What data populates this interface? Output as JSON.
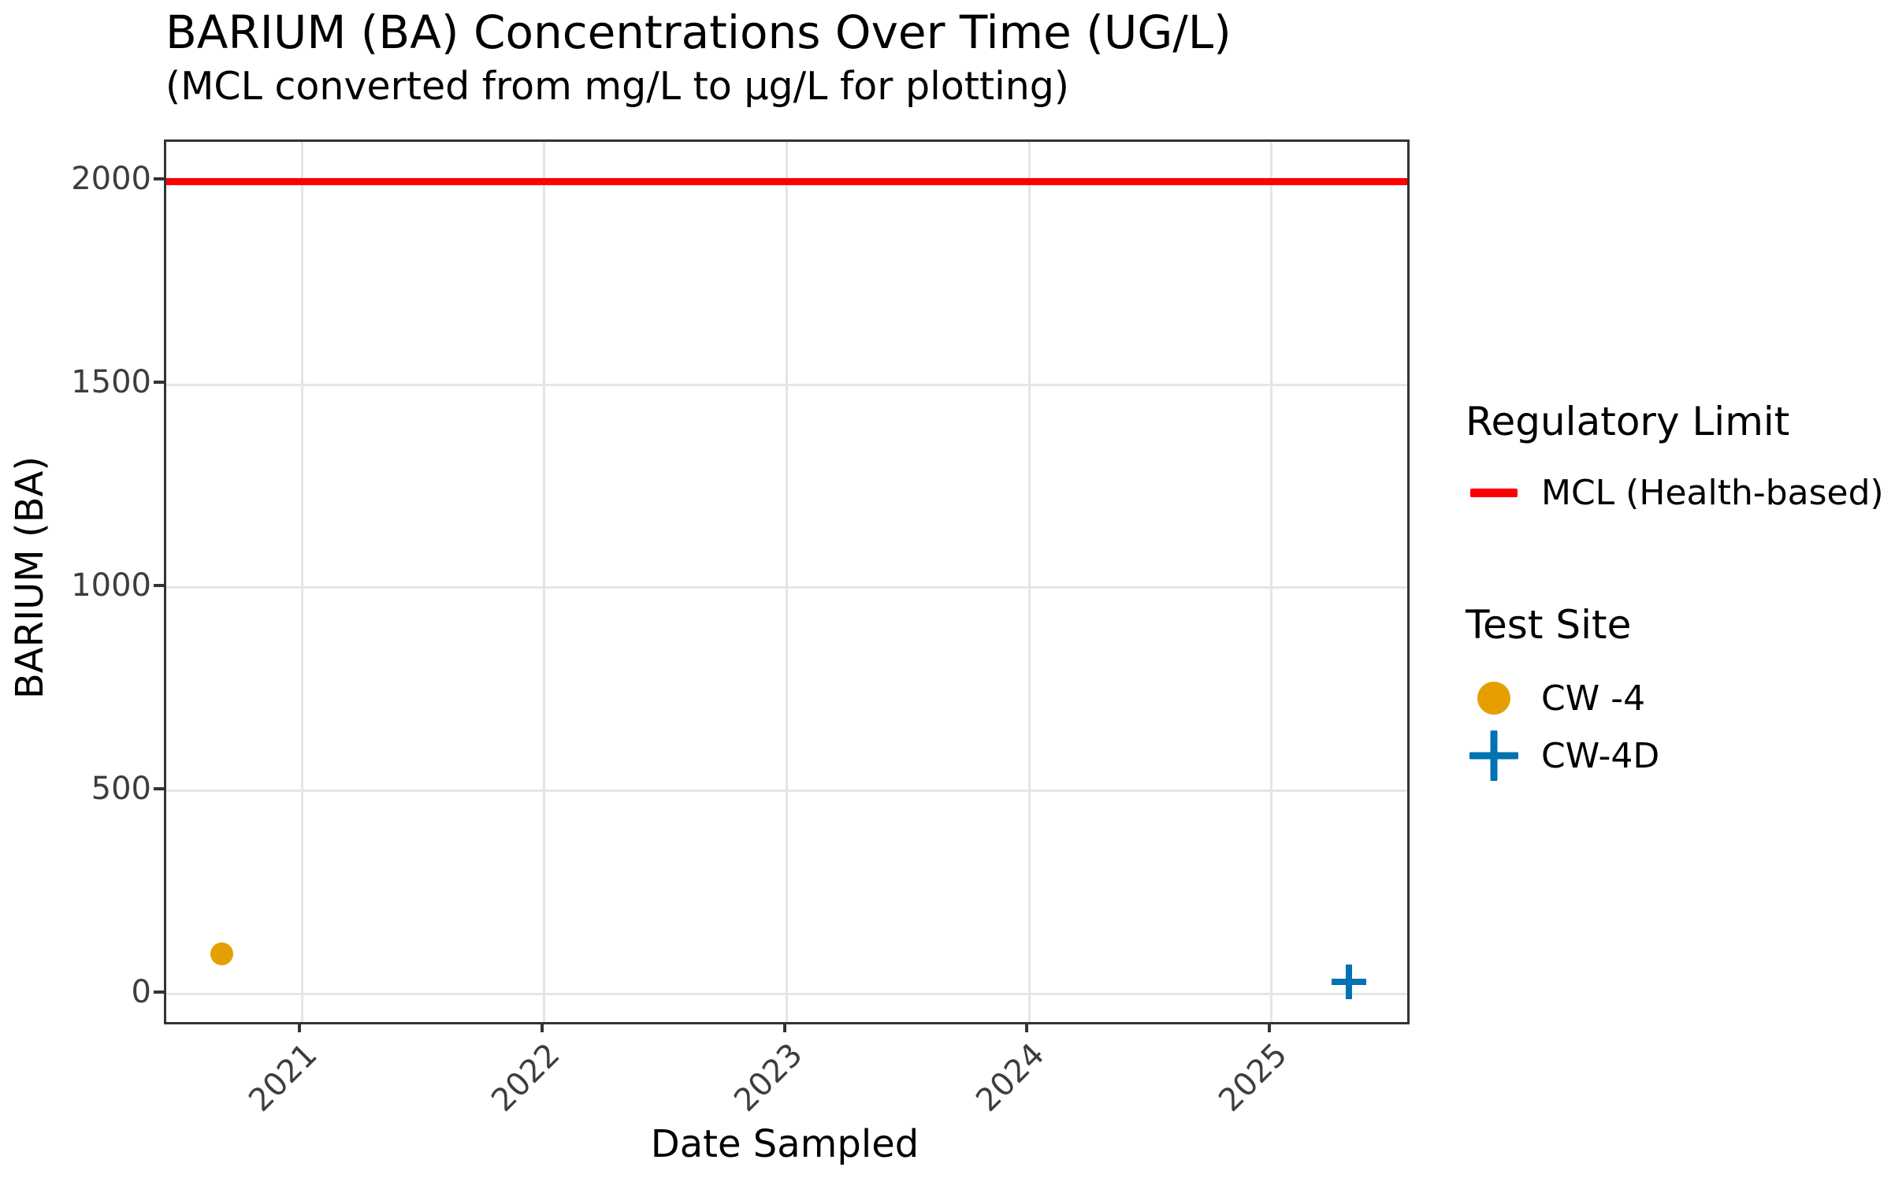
{
  "title": "BARIUM (BA) Concentrations Over Time (UG/L)",
  "subtitle": "(MCL converted from mg/L to µg/L for plotting)",
  "x_axis_label": "Date Sampled",
  "y_axis_label": "BARIUM (BA)",
  "legend": {
    "regulatory_title": "Regulatory Limit",
    "mcl_label": "MCL (Health-based)",
    "site_title": "Test Site",
    "site1_label": "CW -4",
    "site2_label": "CW-4D"
  },
  "colors": {
    "mcl_line": "#FF0000",
    "site1": "#E69F00",
    "site2": "#0173B2",
    "grid": "#E5E5E5",
    "axis": "#333333",
    "tick_label": "#3d3d3d"
  },
  "chart_data": {
    "type": "scatter",
    "title": "BARIUM (BA) Concentrations Over Time (UG/L)",
    "subtitle": "(MCL converted from mg/L to µg/L for plotting)",
    "xlabel": "Date Sampled",
    "ylabel": "BARIUM (BA)",
    "grid": true,
    "legend_position": "right",
    "x_ticks": [
      2021,
      2022,
      2023,
      2024,
      2025
    ],
    "y_ticks": [
      0,
      500,
      1000,
      1500,
      2000
    ],
    "xlim": [
      2020.44,
      2025.56
    ],
    "ylim": [
      -68,
      2097
    ],
    "mcl_line": {
      "label": "MCL (Health-based)",
      "value": 2000
    },
    "series": [
      {
        "name": "CW -4",
        "marker": "circle",
        "color_key": "site1",
        "points": [
          {
            "x": 2020.67,
            "y": 100
          }
        ]
      },
      {
        "name": "CW-4D",
        "marker": "plus",
        "color_key": "site2",
        "points": [
          {
            "x": 2025.32,
            "y": 30
          }
        ]
      }
    ]
  }
}
